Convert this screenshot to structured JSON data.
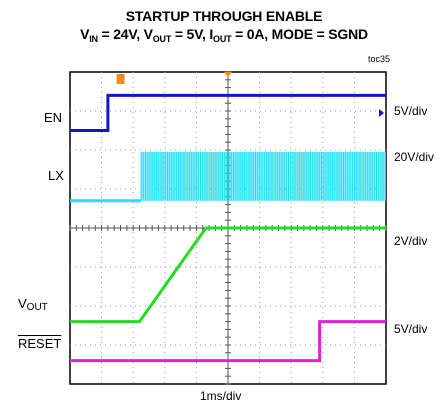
{
  "chart_data": {
    "type": "oscilloscope",
    "title": "STARTUP THROUGH ENABLE",
    "subtitle": {
      "vin": {
        "main": "V",
        "sub": "IN",
        "rest": " = 24V, "
      },
      "vout": {
        "main": "V",
        "sub": "OUT",
        "rest": " = 5V, "
      },
      "iout": {
        "main": "I",
        "sub": "OUT",
        "rest": " = 0A, MODE = SGND"
      }
    },
    "figure_id": "toc35",
    "time_scale": "1ms/div",
    "divisions": {
      "x": 10,
      "y": 8
    },
    "trigger_time_div": 1.6,
    "colors": {
      "EN": "#1414c8",
      "LX": "#22e0f0",
      "VOUT": "#22dd22",
      "RESET": "#e020d8",
      "grid": "#9a9a9a",
      "frame": "#000000",
      "background": "#ffffff"
    },
    "traces": [
      {
        "name": "EN",
        "label_main": "EN",
        "label_sub": "",
        "scale": "5V/div",
        "points": [
          [
            0,
            1.5
          ],
          [
            1.2,
            1.5
          ],
          [
            1.2,
            0.6
          ],
          [
            10,
            0.6
          ]
        ]
      },
      {
        "name": "LX",
        "label_main": "LX",
        "label_sub": "",
        "scale": "20V/div",
        "baseline": 3.3,
        "switching_start": 2.25,
        "switching_top": 2.05,
        "switching_bottom": 3.3
      },
      {
        "name": "VOUT",
        "label_main": "V",
        "label_sub": "OUT",
        "scale": "2V/div",
        "points": [
          [
            0,
            6.4
          ],
          [
            2.2,
            6.4
          ],
          [
            4.3,
            4.0
          ],
          [
            10,
            4.0
          ]
        ]
      },
      {
        "name": "RESET",
        "label_main": "RESET",
        "label_sub": "",
        "overline": true,
        "scale": "5V/div",
        "points": [
          [
            0,
            7.4
          ],
          [
            7.9,
            7.4
          ],
          [
            7.9,
            6.4
          ],
          [
            10,
            6.4
          ]
        ]
      }
    ]
  }
}
